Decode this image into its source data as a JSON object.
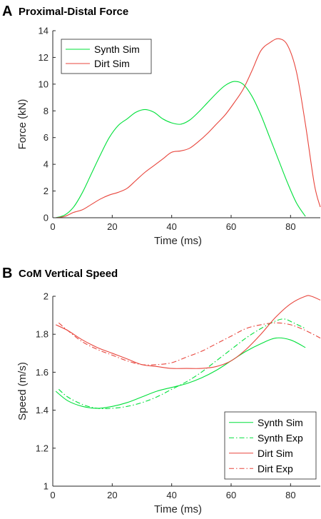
{
  "colors": {
    "synth": "#00e03a",
    "dirt": "#e8453c",
    "axis": "#262626"
  },
  "chart_data": [
    {
      "type": "line",
      "panel": "A",
      "title": "Proximal-Distal Force",
      "xlabel": "Time (ms)",
      "ylabel": "Force (kN)",
      "xlim": [
        0,
        90
      ],
      "ylim": [
        0,
        14
      ],
      "xticks": [
        0,
        20,
        40,
        60,
        80
      ],
      "yticks": [
        0,
        2,
        4,
        6,
        8,
        10,
        12,
        14
      ],
      "legend_position": "top-left",
      "grid": false,
      "series": [
        {
          "name": "Synth Sim",
          "color_key": "synth",
          "dash": "solid",
          "x": [
            1,
            4,
            7,
            10,
            13,
            16,
            19,
            22,
            25,
            28,
            31,
            34,
            37,
            40,
            43,
            46,
            49,
            52,
            55,
            58,
            61,
            64,
            67,
            70,
            73,
            76,
            79,
            82,
            85
          ],
          "y": [
            0,
            0.2,
            0.8,
            1.9,
            3.3,
            4.7,
            6.0,
            6.9,
            7.4,
            7.9,
            8.1,
            7.9,
            7.4,
            7.1,
            7.0,
            7.3,
            7.9,
            8.6,
            9.3,
            9.9,
            10.2,
            10.0,
            9.1,
            7.7,
            6.0,
            4.3,
            2.6,
            1.1,
            0.1
          ]
        },
        {
          "name": "Dirt Sim",
          "color_key": "dirt",
          "dash": "solid",
          "x": [
            1,
            4,
            7,
            10,
            13,
            16,
            19,
            22,
            25,
            28,
            31,
            34,
            37,
            40,
            43,
            46,
            49,
            52,
            55,
            58,
            61,
            64,
            67,
            70,
            73,
            76,
            79,
            82,
            85,
            88,
            90
          ],
          "y": [
            0,
            0.1,
            0.4,
            0.6,
            1.0,
            1.4,
            1.7,
            1.9,
            2.2,
            2.8,
            3.4,
            3.9,
            4.4,
            4.9,
            5.0,
            5.2,
            5.7,
            6.3,
            7.0,
            7.7,
            8.6,
            9.6,
            11.0,
            12.5,
            13.1,
            13.4,
            12.9,
            10.9,
            7.0,
            2.5,
            0.8
          ]
        }
      ]
    },
    {
      "type": "line",
      "panel": "B",
      "title": "CoM Vertical Speed",
      "xlabel": "Time (ms)",
      "ylabel": "Speed (m/s)",
      "xlim": [
        0,
        90
      ],
      "ylim": [
        1,
        2
      ],
      "xticks": [
        0,
        20,
        40,
        60,
        80
      ],
      "yticks": [
        1,
        1.2,
        1.4,
        1.6,
        1.8,
        2
      ],
      "legend_position": "bottom-right",
      "grid": false,
      "series": [
        {
          "name": "Synth Sim",
          "color_key": "synth",
          "dash": "solid",
          "x": [
            1,
            5,
            10,
            15,
            20,
            25,
            30,
            35,
            40,
            45,
            50,
            55,
            60,
            65,
            70,
            75,
            80,
            85
          ],
          "y": [
            1.5,
            1.45,
            1.42,
            1.41,
            1.42,
            1.44,
            1.47,
            1.5,
            1.52,
            1.54,
            1.57,
            1.61,
            1.66,
            1.71,
            1.75,
            1.78,
            1.77,
            1.73
          ]
        },
        {
          "name": "Synth Exp",
          "color_key": "synth",
          "dash": "dashdot",
          "x": [
            2,
            5,
            10,
            15,
            20,
            25,
            30,
            35,
            40,
            45,
            50,
            55,
            60,
            65,
            70,
            75,
            78,
            81,
            85
          ],
          "y": [
            1.51,
            1.47,
            1.43,
            1.41,
            1.41,
            1.42,
            1.44,
            1.47,
            1.51,
            1.55,
            1.6,
            1.66,
            1.72,
            1.78,
            1.83,
            1.87,
            1.88,
            1.86,
            1.83
          ]
        },
        {
          "name": "Dirt Sim",
          "color_key": "dirt",
          "dash": "solid",
          "x": [
            1,
            5,
            10,
            15,
            20,
            25,
            30,
            35,
            40,
            45,
            50,
            55,
            60,
            65,
            70,
            75,
            80,
            85,
            87,
            90
          ],
          "y": [
            1.85,
            1.82,
            1.77,
            1.73,
            1.7,
            1.67,
            1.64,
            1.63,
            1.62,
            1.62,
            1.62,
            1.63,
            1.66,
            1.72,
            1.8,
            1.89,
            1.96,
            2.0,
            2.0,
            1.98
          ]
        },
        {
          "name": "Dirt Exp",
          "color_key": "dirt",
          "dash": "dashdot",
          "x": [
            2,
            5,
            10,
            15,
            20,
            25,
            30,
            35,
            40,
            45,
            50,
            55,
            60,
            65,
            70,
            75,
            80,
            85,
            90
          ],
          "y": [
            1.86,
            1.82,
            1.76,
            1.72,
            1.69,
            1.66,
            1.64,
            1.64,
            1.65,
            1.68,
            1.71,
            1.75,
            1.79,
            1.83,
            1.85,
            1.86,
            1.85,
            1.82,
            1.78
          ]
        }
      ]
    }
  ]
}
